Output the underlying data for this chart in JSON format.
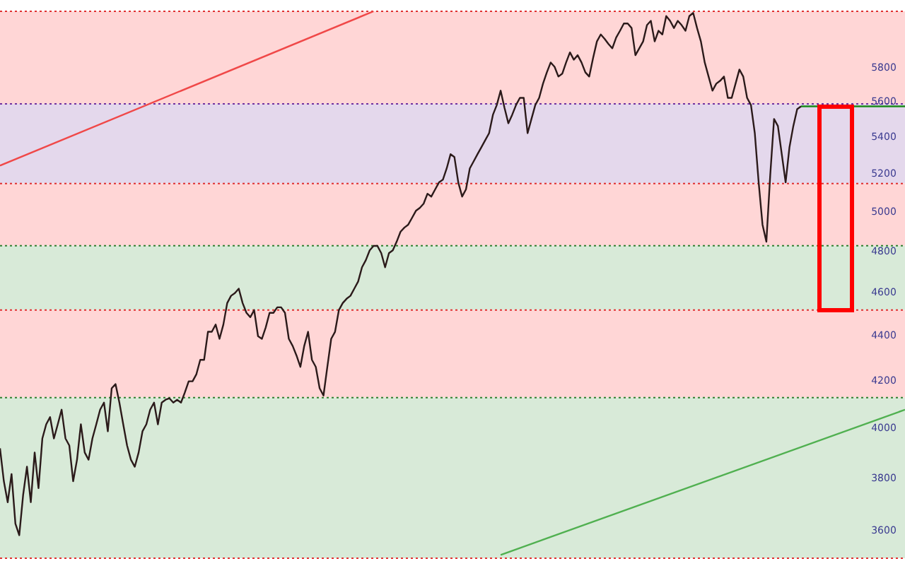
{
  "chart_data": {
    "type": "line",
    "categories": [
      null,
      null,
      null,
      null,
      null,
      null,
      null,
      null,
      null,
      null,
      null,
      null,
      null,
      null,
      null,
      null,
      null,
      null,
      null,
      null,
      null,
      null,
      null,
      null,
      null,
      null,
      null,
      null,
      null,
      null,
      null,
      null,
      null,
      null,
      null,
      null,
      null,
      null,
      null,
      null,
      null,
      null,
      null,
      null,
      null,
      null,
      null,
      null,
      null,
      null,
      null,
      null,
      null,
      null,
      null,
      null,
      null,
      null,
      null,
      null,
      null,
      null,
      null,
      null,
      null,
      null,
      null,
      null,
      null,
      null,
      null,
      null,
      null,
      null,
      null,
      null,
      null,
      null,
      null,
      null,
      null,
      null,
      null,
      null,
      null,
      null,
      null,
      null,
      null,
      null,
      null,
      null,
      null,
      null,
      null,
      null,
      null,
      null,
      null,
      null,
      null,
      null,
      null,
      null,
      null,
      null,
      null,
      null,
      null,
      null,
      null,
      null,
      null,
      null,
      null,
      null,
      null,
      null,
      null,
      null,
      null,
      null,
      null,
      null,
      null,
      null,
      null,
      null,
      null,
      null,
      null,
      null,
      null,
      null,
      null,
      null,
      null,
      null,
      null,
      null,
      null,
      null,
      null,
      null,
      null,
      null,
      null,
      null,
      null,
      null,
      null,
      null,
      null,
      null,
      null,
      null,
      null,
      null,
      null,
      null,
      null,
      null,
      null,
      null,
      null,
      null,
      null,
      null,
      null,
      null,
      null,
      null,
      null,
      null,
      null,
      null,
      null,
      null,
      null,
      null,
      null,
      null,
      null,
      null,
      null,
      null,
      null,
      null,
      null,
      null,
      null,
      null,
      null,
      null,
      null,
      null,
      null,
      null,
      null,
      null,
      null,
      null,
      null,
      null,
      null,
      null,
      null,
      null,
      null,
      null,
      null,
      null,
      null,
      null,
      null,
      null,
      null,
      null,
      null,
      null,
      null,
      null,
      null,
      null,
      null,
      null,
      null,
      null,
      null,
      null,
      null,
      null,
      null,
      null,
      null,
      null
    ],
    "series": [
      {
        "color": "#2b1a1a",
        "values": [
          3920,
          3789,
          3708,
          3817,
          3627,
          3584,
          3735,
          3846,
          3708,
          3903,
          3762,
          3960,
          4018,
          4048,
          3960,
          4018,
          4079,
          3960,
          3931,
          3789,
          3874,
          4018,
          3903,
          3874,
          3960,
          4018,
          4079,
          4109,
          3989,
          4170,
          4188,
          4109,
          4018,
          3931,
          3874,
          3846,
          3903,
          3989,
          4018,
          4079,
          4109,
          4018,
          4109,
          4121,
          4127,
          4109,
          4121,
          4109,
          4152,
          4200,
          4200,
          4231,
          4294,
          4294,
          4420,
          4420,
          4453,
          4388,
          4453,
          4553,
          4587,
          4600,
          4621,
          4553,
          4507,
          4487,
          4520,
          4400,
          4388,
          4440,
          4507,
          4507,
          4533,
          4533,
          4507,
          4388,
          4356,
          4313,
          4263,
          4356,
          4420,
          4294,
          4263,
          4170,
          4139,
          4263,
          4388,
          4420,
          4520,
          4553,
          4573,
          4587,
          4621,
          4655,
          4724,
          4759,
          4807,
          4829,
          4829,
          4793,
          4724,
          4793,
          4807,
          4850,
          4900,
          4921,
          4936,
          4971,
          5007,
          5022,
          5044,
          5096,
          5081,
          5119,
          5156,
          5170,
          5231,
          5308,
          5292,
          5156,
          5081,
          5119,
          5231,
          5269,
          5308,
          5346,
          5385,
          5424,
          5528,
          5584,
          5667,
          5568,
          5480,
          5528,
          5584,
          5625,
          5625,
          5424,
          5504,
          5584,
          5625,
          5708,
          5775,
          5834,
          5808,
          5750,
          5767,
          5834,
          5895,
          5851,
          5878,
          5834,
          5775,
          5750,
          5860,
          5962,
          6005,
          5978,
          5946,
          5920,
          5986,
          6028,
          6073,
          6073,
          6045,
          5878,
          5920,
          5962,
          6063,
          6090,
          5962,
          6028,
          6005,
          6120,
          6090,
          6045,
          6090,
          6063,
          6028,
          6120,
          6140,
          6045,
          5962,
          5834,
          5750,
          5667,
          5708,
          5725,
          5750,
          5625,
          5625,
          5708,
          5792,
          5750,
          5625,
          5584,
          5424,
          5156,
          4936,
          4850,
          5193,
          5504,
          5464,
          5308,
          5156,
          5346,
          5464,
          5560,
          5576,
          null,
          null,
          null,
          null,
          null,
          null,
          null,
          null,
          null,
          null,
          null,
          null,
          null,
          null,
          null,
          null,
          null,
          null,
          null,
          null,
          null,
          null,
          null,
          null,
          null,
          null,
          null
        ]
      },
      {
        "color": "#1a8a1a",
        "values": [
          null,
          null,
          null,
          null,
          null,
          null,
          null,
          null,
          null,
          null,
          null,
          null,
          null,
          null,
          null,
          null,
          null,
          null,
          null,
          null,
          null,
          null,
          null,
          null,
          null,
          null,
          null,
          null,
          null,
          null,
          null,
          null,
          null,
          null,
          null,
          null,
          null,
          null,
          null,
          null,
          null,
          null,
          null,
          null,
          null,
          null,
          null,
          null,
          null,
          null,
          null,
          null,
          null,
          null,
          null,
          null,
          null,
          null,
          null,
          null,
          null,
          null,
          null,
          null,
          null,
          null,
          null,
          null,
          null,
          null,
          null,
          null,
          null,
          null,
          null,
          null,
          null,
          null,
          null,
          null,
          null,
          null,
          null,
          null,
          null,
          null,
          null,
          null,
          null,
          null,
          null,
          null,
          null,
          null,
          null,
          null,
          null,
          null,
          null,
          null,
          null,
          null,
          null,
          null,
          null,
          null,
          null,
          null,
          null,
          null,
          null,
          null,
          null,
          null,
          null,
          null,
          null,
          null,
          null,
          null,
          null,
          null,
          null,
          null,
          null,
          null,
          null,
          null,
          null,
          null,
          null,
          null,
          null,
          null,
          null,
          null,
          null,
          null,
          null,
          null,
          null,
          null,
          null,
          null,
          null,
          null,
          null,
          null,
          null,
          null,
          null,
          null,
          null,
          null,
          null,
          null,
          null,
          null,
          null,
          null,
          null,
          null,
          null,
          null,
          null,
          null,
          null,
          null,
          null,
          null,
          null,
          null,
          null,
          null,
          null,
          null,
          null,
          null,
          null,
          null,
          null,
          null,
          null,
          null,
          null,
          null,
          null,
          null,
          null,
          null,
          null,
          null,
          null,
          null,
          null,
          null,
          null,
          null,
          null,
          null,
          null,
          null,
          null,
          null,
          null,
          null,
          null,
          null,
          5576,
          null,
          null,
          null,
          null,
          null,
          null,
          null,
          null,
          null,
          null,
          null,
          null,
          null,
          null,
          null,
          null,
          null,
          null,
          null,
          null,
          null,
          null,
          null,
          null,
          null,
          null,
          5576
        ]
      },
      {
        "color": "#f04848",
        "values": [
          5246,
          null,
          null,
          null,
          null,
          null,
          null,
          null,
          null,
          null,
          null,
          null,
          null,
          null,
          null,
          null,
          null,
          null,
          null,
          null,
          null,
          null,
          null,
          null,
          null,
          null,
          null,
          null,
          null,
          null,
          null,
          null,
          null,
          null,
          null,
          null,
          null,
          null,
          null,
          null,
          null,
          null,
          null,
          null,
          null,
          null,
          null,
          null,
          null,
          null,
          null,
          null,
          null,
          null,
          null,
          null,
          null,
          null,
          null,
          null,
          null,
          null,
          null,
          null,
          null,
          null,
          null,
          null,
          null,
          null,
          null,
          null,
          null,
          null,
          null,
          null,
          null,
          null,
          null,
          null,
          null,
          null,
          null,
          null,
          null,
          null,
          null,
          null,
          null,
          null,
          null,
          null,
          null,
          null,
          null,
          null,
          null,
          6150,
          null,
          null,
          null,
          null,
          null,
          null,
          null,
          null,
          null,
          null,
          null,
          null,
          null,
          null,
          null,
          null,
          null,
          null,
          null,
          null,
          null,
          null,
          null,
          null,
          null,
          null,
          null,
          null,
          null,
          null,
          null,
          null,
          null,
          null,
          null,
          null,
          null,
          null,
          null,
          null,
          null,
          null,
          null,
          null,
          null,
          null,
          null,
          null,
          null,
          null,
          null,
          null,
          null,
          null,
          null,
          null,
          null,
          null,
          null,
          null,
          null,
          null,
          null,
          null,
          null,
          null,
          null,
          null,
          null,
          null,
          null,
          null,
          null,
          null,
          null,
          null,
          null,
          null,
          null,
          null,
          null,
          null,
          null,
          null,
          null,
          null,
          null,
          null,
          null,
          null,
          null,
          null,
          null,
          null,
          null,
          null,
          null,
          null,
          null,
          null,
          null,
          null,
          null,
          null,
          null,
          null,
          null,
          null,
          null,
          null,
          null,
          null,
          null,
          null,
          null,
          null,
          null,
          null,
          null,
          null,
          null,
          null,
          null,
          null,
          null,
          null,
          null,
          null,
          null,
          null,
          null,
          null,
          null,
          null,
          null,
          null,
          null,
          null
        ]
      },
      {
        "color": "#50b050",
        "values": [
          null,
          null,
          null,
          null,
          null,
          null,
          null,
          null,
          null,
          null,
          null,
          null,
          null,
          null,
          null,
          null,
          null,
          null,
          null,
          null,
          null,
          null,
          null,
          null,
          null,
          null,
          null,
          null,
          null,
          null,
          null,
          null,
          null,
          null,
          null,
          null,
          null,
          null,
          null,
          null,
          null,
          null,
          null,
          null,
          null,
          null,
          null,
          null,
          null,
          null,
          null,
          null,
          null,
          null,
          null,
          null,
          null,
          null,
          null,
          null,
          null,
          null,
          null,
          null,
          null,
          null,
          null,
          null,
          null,
          null,
          null,
          null,
          null,
          null,
          null,
          null,
          null,
          null,
          null,
          null,
          null,
          null,
          null,
          null,
          null,
          null,
          null,
          null,
          null,
          null,
          null,
          null,
          null,
          null,
          null,
          null,
          null,
          null,
          null,
          null,
          null,
          null,
          null,
          null,
          null,
          null,
          null,
          null,
          null,
          null,
          null,
          null,
          null,
          null,
          null,
          null,
          null,
          null,
          null,
          null,
          null,
          null,
          null,
          null,
          null,
          null,
          null,
          null,
          null,
          null,
          3512,
          null,
          null,
          null,
          null,
          null,
          null,
          null,
          null,
          null,
          null,
          null,
          null,
          null,
          null,
          null,
          null,
          null,
          null,
          null,
          null,
          null,
          null,
          null,
          null,
          null,
          null,
          null,
          null,
          null,
          null,
          null,
          null,
          null,
          null,
          null,
          null,
          null,
          null,
          null,
          null,
          null,
          null,
          null,
          null,
          null,
          null,
          null,
          null,
          null,
          null,
          null,
          null,
          null,
          null,
          null,
          null,
          null,
          null,
          null,
          null,
          null,
          null,
          null,
          null,
          null,
          null,
          null,
          null,
          null,
          null,
          null,
          null,
          null,
          null,
          null,
          null,
          null,
          null,
          null,
          null,
          null,
          null,
          null,
          null,
          null,
          null,
          null,
          null,
          null,
          null,
          null,
          null,
          null,
          null,
          null,
          null,
          null,
          null,
          null,
          null,
          null,
          null,
          null,
          null,
          4079
        ]
      }
    ],
    "ylim": [
      3500,
      6150
    ],
    "yticks": [
      3600,
      3800,
      4000,
      4200,
      4400,
      4600,
      4800,
      5000,
      5200,
      5400,
      5600,
      5800
    ],
    "log": "y",
    "grid": false,
    "legend": false,
    "tick_labels": "y",
    "bands": [
      {
        "axis": "y",
        "from": 5590,
        "to": 6150,
        "color": "#ffd6d6"
      },
      {
        "axis": "y",
        "from": 5150,
        "to": 5590,
        "color": "#e4d8ec"
      },
      {
        "axis": "y",
        "from": 4830,
        "to": 5150,
        "color": "#ffd6d6"
      },
      {
        "axis": "y",
        "from": 4520,
        "to": 4830,
        "color": "#d8ead8"
      },
      {
        "axis": "y",
        "from": 4130,
        "to": 4520,
        "color": "#ffd6d6"
      },
      {
        "axis": "y",
        "from": 3500,
        "to": 4130,
        "color": "#d8ead8"
      }
    ],
    "ref_lines": [
      {
        "axis": "y",
        "value": 6150,
        "color": "#e03030",
        "line_style": "dotted"
      },
      {
        "axis": "y",
        "value": 5590,
        "color": "#7030a0",
        "line_style": "dotted"
      },
      {
        "axis": "y",
        "value": 5150,
        "color": "#e03030",
        "line_style": "dotted"
      },
      {
        "axis": "y",
        "value": 4830,
        "color": "#308030",
        "line_style": "dotted"
      },
      {
        "axis": "y",
        "value": 4520,
        "color": "#e03030",
        "line_style": "dotted"
      },
      {
        "axis": "y",
        "value": 4130,
        "color": "#308030",
        "line_style": "dotted"
      },
      {
        "axis": "y",
        "value": 3500,
        "color": "#e03030",
        "line_style": "dotted"
      }
    ]
  }
}
